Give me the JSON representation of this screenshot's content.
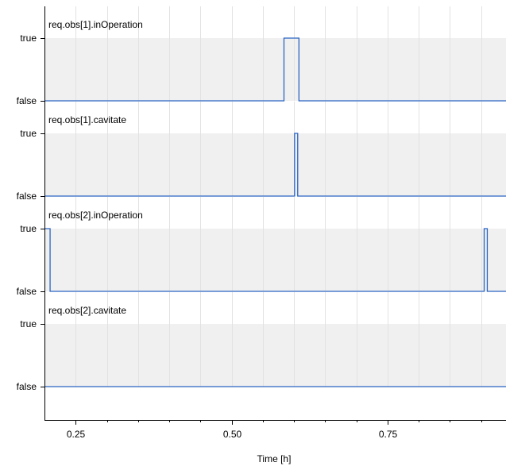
{
  "chart_data": {
    "type": "line",
    "xlabel": "Time [h]",
    "xlim": [
      0.2,
      0.94
    ],
    "x_ticks": [
      {
        "value": 0.25,
        "label": "0.25"
      },
      {
        "value": 0.5,
        "label": "0.50"
      },
      {
        "value": 0.75,
        "label": "0.75"
      }
    ],
    "y_ticks": [
      "true",
      "false"
    ],
    "grid": true,
    "colors": {
      "line": "#2a64c2",
      "band": "#f0f0f0",
      "grid": "#e2e2e2",
      "axis": "#000000"
    },
    "panels": [
      {
        "title": "req.obs[1].inOperation",
        "steps": [
          [
            0.2,
            0
          ],
          [
            0.584,
            1
          ],
          [
            0.608,
            0
          ],
          [
            0.94,
            0
          ]
        ]
      },
      {
        "title": "req.obs[1].cavitate",
        "steps": [
          [
            0.2,
            0
          ],
          [
            0.601,
            1
          ],
          [
            0.606,
            0
          ],
          [
            0.94,
            0
          ]
        ]
      },
      {
        "title": "req.obs[2].inOperation",
        "steps": [
          [
            0.2,
            1
          ],
          [
            0.203,
            1
          ],
          [
            0.209,
            0
          ],
          [
            0.905,
            1
          ],
          [
            0.91,
            0
          ],
          [
            0.94,
            0
          ]
        ]
      },
      {
        "title": "req.obs[2].cavitate",
        "steps": [
          [
            0.2,
            0
          ],
          [
            0.94,
            0
          ]
        ]
      }
    ]
  }
}
